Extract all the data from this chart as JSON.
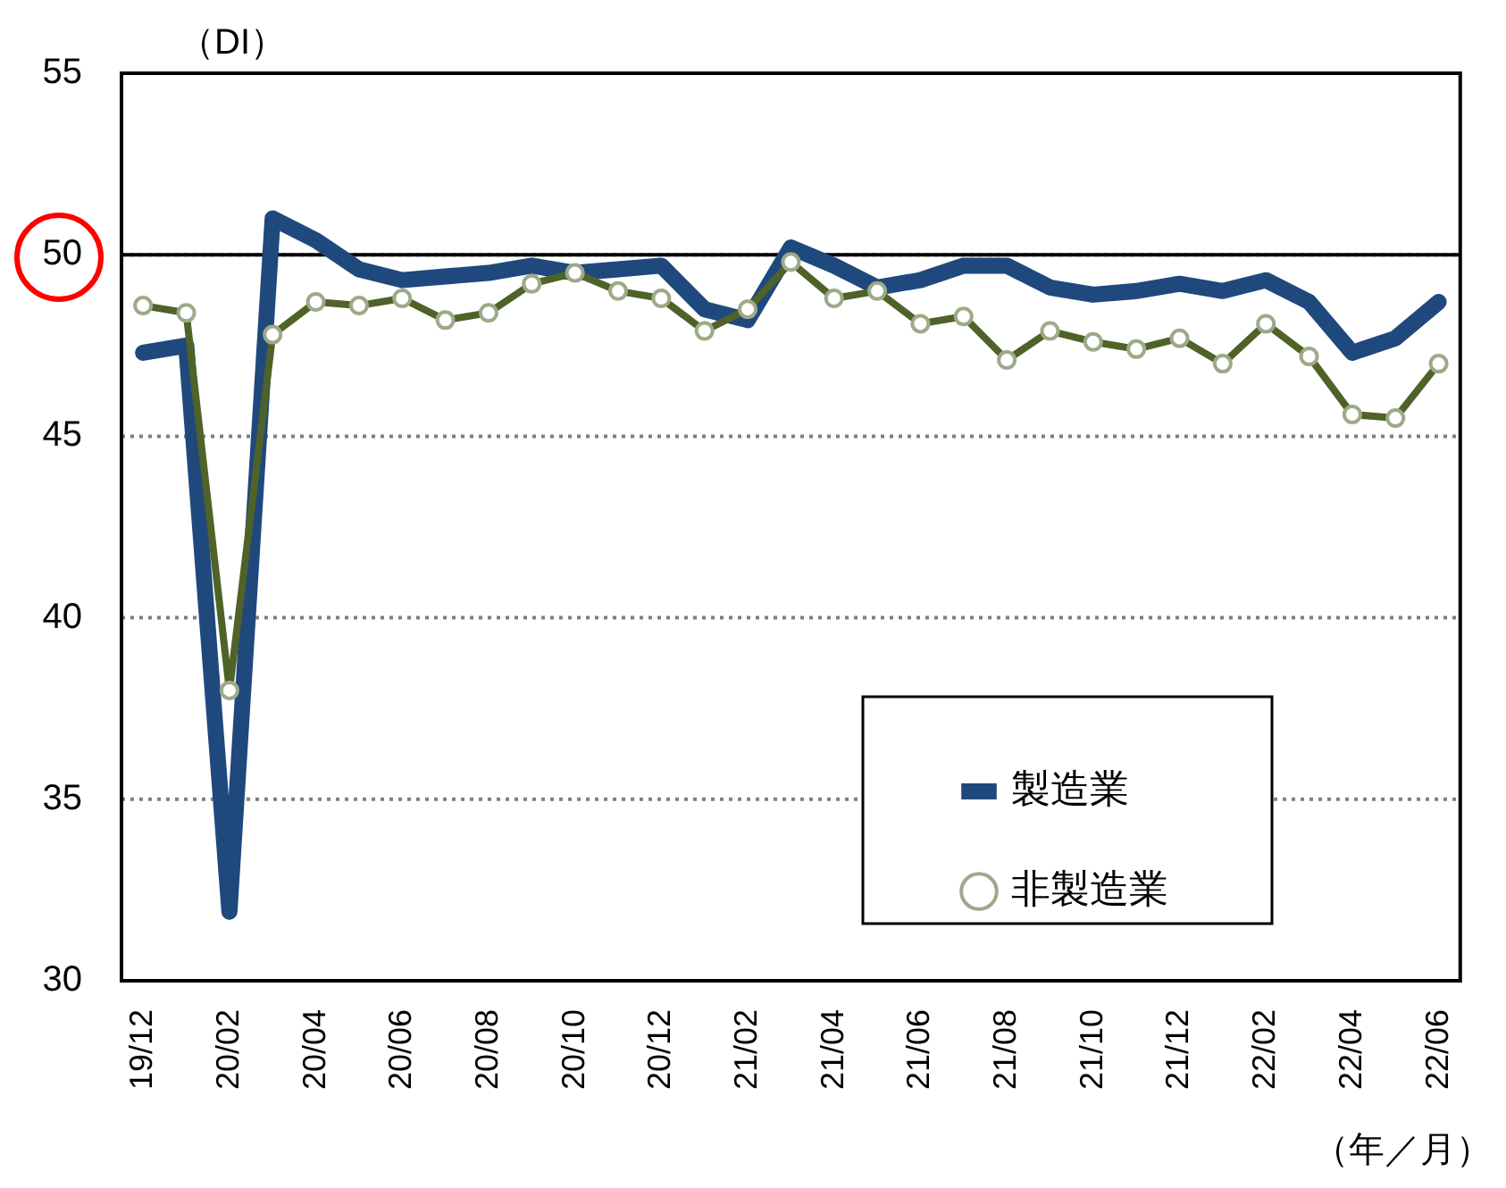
{
  "chart_data": {
    "type": "line",
    "ylabel": "（DI）",
    "xlabel": "（年／月）",
    "categories": [
      "19/12",
      null,
      "20/02",
      null,
      "20/04",
      null,
      "20/06",
      null,
      "20/08",
      null,
      "20/10",
      null,
      "20/12",
      null,
      "21/02",
      null,
      "21/04",
      null,
      "21/06",
      null,
      "21/08",
      null,
      "21/10",
      null,
      "21/12",
      null,
      "22/02",
      null,
      "22/04",
      null,
      "22/06"
    ],
    "series": [
      {
        "name": "製造業",
        "color": "#1f497d",
        "marker": "none",
        "values": [
          47.3,
          47.5,
          31.9,
          51.0,
          50.4,
          49.6,
          49.3,
          49.4,
          49.5,
          49.7,
          49.5,
          49.6,
          49.7,
          48.5,
          48.2,
          50.2,
          49.7,
          49.1,
          49.3,
          49.7,
          49.7,
          49.1,
          48.9,
          49.0,
          49.2,
          49.0,
          49.3,
          48.7,
          47.3,
          47.7,
          48.7
        ]
      },
      {
        "name": "非製造業",
        "color": "#4f6228",
        "marker": "circle",
        "values": [
          48.6,
          48.4,
          38.0,
          47.8,
          48.7,
          48.6,
          48.8,
          48.2,
          48.4,
          49.2,
          49.5,
          49.0,
          48.8,
          47.9,
          48.5,
          49.8,
          48.8,
          49.0,
          48.1,
          48.3,
          47.1,
          47.9,
          47.6,
          47.4,
          47.7,
          47.0,
          48.1,
          47.2,
          45.6,
          45.5,
          47.0
        ]
      }
    ],
    "ylim": [
      30,
      55
    ],
    "yticks": [
      30,
      35,
      40,
      45,
      50,
      55
    ],
    "grid": "y",
    "legend": "bottom right",
    "ref_lines": [
      {
        "axis": "y",
        "value": 50,
        "color": "#000000",
        "line_style": "solid"
      }
    ]
  }
}
